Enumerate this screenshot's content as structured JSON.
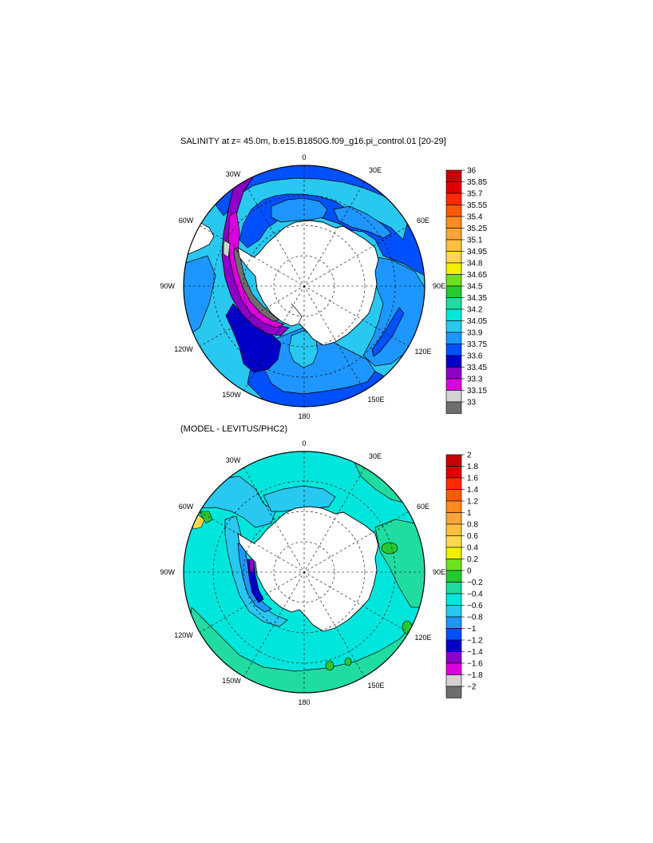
{
  "panel1": {
    "title": "SALINITY at z=  45.0m, b.e15.B1850G.f09_g16.pi_control.01 [20-29]",
    "lon_labels": [
      "0",
      "30E",
      "60E",
      "90E",
      "120E",
      "150E",
      "180",
      "150W",
      "120W",
      "90W",
      "60W",
      "30W"
    ],
    "colorbar": {
      "labels": [
        "36",
        "35.85",
        "35.7",
        "35.55",
        "35.4",
        "35.25",
        "35.1",
        "34.95",
        "34.8",
        "34.65",
        "34.5",
        "34.35",
        "34.2",
        "34.05",
        "33.9",
        "33.75",
        "33.6",
        "33.45",
        "33.3",
        "33.15",
        "33"
      ],
      "colors": [
        "#c80000",
        "#e00000",
        "#ff2a00",
        "#ff5a00",
        "#ff8c1e",
        "#ffa43c",
        "#ffc040",
        "#ffd850",
        "#f0f000",
        "#6ee020",
        "#28c830",
        "#20dca0",
        "#00e6dc",
        "#28c8f0",
        "#1e96ff",
        "#0050ff",
        "#0000c8",
        "#8c00c8",
        "#dc00dc",
        "#d2d2d2",
        "#6e6e6e"
      ]
    }
  },
  "panel2": {
    "title": "(MODEL - LEVITUS/PHC2)",
    "lon_labels": [
      "0",
      "30E",
      "60E",
      "90E",
      "120E",
      "150E",
      "180",
      "150W",
      "120W",
      "90W",
      "60W",
      "30W"
    ],
    "colorbar": {
      "labels": [
        "2",
        "1.8",
        "1.6",
        "1.4",
        "1.2",
        "1",
        "0.8",
        "0.6",
        "0.4",
        "0.2",
        "0",
        "−0.2",
        "−0.4",
        "−0.6",
        "−0.8",
        "−1",
        "−1.2",
        "−1.4",
        "−1.6",
        "−1.8",
        "−2"
      ],
      "colors": [
        "#c80000",
        "#e00000",
        "#ff2a00",
        "#ff5a00",
        "#ff8c1e",
        "#ffa43c",
        "#ffc040",
        "#ffd850",
        "#f0f000",
        "#6ee020",
        "#28c830",
        "#20dca0",
        "#00e6dc",
        "#28c8f0",
        "#1e96ff",
        "#0050ff",
        "#0000c8",
        "#8c00c8",
        "#dc00dc",
        "#d2d2d2",
        "#6e6e6e"
      ]
    }
  }
}
